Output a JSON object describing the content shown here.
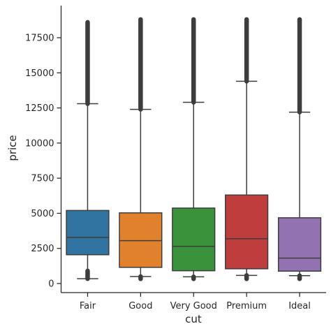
{
  "chart_data": {
    "type": "box",
    "xlabel": "cut",
    "ylabel": "price",
    "ylim": [
      -600,
      19700
    ],
    "yticks": [
      0,
      2500,
      5000,
      7500,
      10000,
      12500,
      15000,
      17500
    ],
    "ytick_labels": [
      "0",
      "2500",
      "5000",
      "7500",
      "10000",
      "12500",
      "15000",
      "17500"
    ],
    "grid": false,
    "categories": [
      "Fair",
      "Good",
      "Very Good",
      "Premium",
      "Ideal"
    ],
    "boxes": [
      {
        "category": "Fair",
        "color": "#3274a1",
        "whisker_low": 340,
        "q1": 2050,
        "median": 3280,
        "q3": 5200,
        "whisker_high": 12800,
        "outliers_low": [
          340,
          900
        ],
        "outliers_high": [
          12800,
          18600
        ]
      },
      {
        "category": "Good",
        "color": "#e1812c",
        "whisker_low": 500,
        "q1": 1150,
        "median": 3050,
        "q3": 5030,
        "whisker_high": 12400,
        "outliers_low": [
          330,
          500
        ],
        "outliers_high": [
          12400,
          18800
        ]
      },
      {
        "category": "Very Good",
        "color": "#3a923a",
        "whisker_low": 480,
        "q1": 910,
        "median": 2650,
        "q3": 5370,
        "whisker_high": 12900,
        "outliers_low": [
          330,
          480
        ],
        "outliers_high": [
          12900,
          18800
        ]
      },
      {
        "category": "Premium",
        "color": "#c03d3e",
        "whisker_low": 580,
        "q1": 1050,
        "median": 3190,
        "q3": 6300,
        "whisker_high": 14400,
        "outliers_low": [
          330,
          580
        ],
        "outliers_high": [
          14400,
          18800
        ]
      },
      {
        "category": "Ideal",
        "color": "#9372b2",
        "whisker_low": 560,
        "q1": 880,
        "median": 1810,
        "q3": 4680,
        "whisker_high": 12200,
        "outliers_low": [
          330,
          560
        ],
        "outliers_high": [
          12200,
          18800
        ]
      }
    ]
  }
}
